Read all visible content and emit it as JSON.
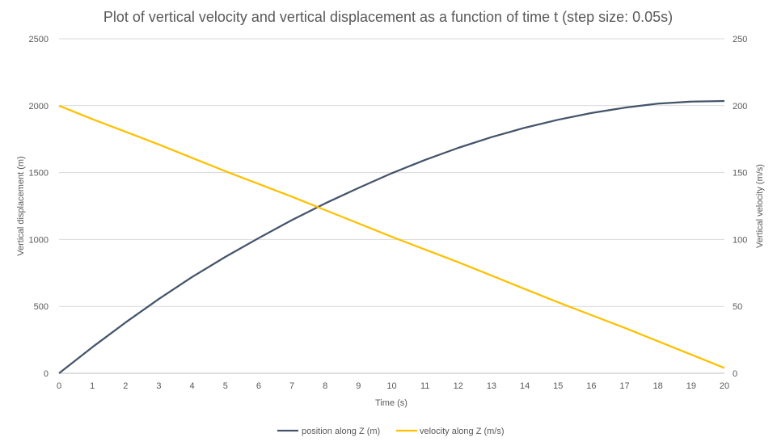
{
  "chart_data": {
    "type": "line",
    "title": "Plot of vertical velocity and vertical displacement as a function of time t (step size: 0.05s)",
    "xlabel": "Time (s)",
    "ylabel_left": "Vertical displacement (m)",
    "ylabel_right": "Vertical velocity (m/s)",
    "xlim": [
      0,
      20
    ],
    "ylim_left": [
      0,
      2500
    ],
    "ylim_right": [
      0,
      250
    ],
    "x_ticks": [
      "0",
      "1",
      "2",
      "3",
      "4",
      "5",
      "6",
      "7",
      "8",
      "9",
      "10",
      "11",
      "12",
      "13",
      "14",
      "15",
      "16",
      "17",
      "18",
      "19",
      "20"
    ],
    "y_left_ticks": [
      "0",
      "500",
      "1000",
      "1500",
      "2000",
      "2500"
    ],
    "y_right_ticks": [
      "0",
      "50",
      "100",
      "150",
      "200",
      "250"
    ],
    "grid": true,
    "legend_position": "bottom",
    "x": [
      0,
      1,
      2,
      3,
      4,
      5,
      6,
      7,
      8,
      9,
      10,
      11,
      12,
      13,
      14,
      15,
      16,
      17,
      18,
      19,
      20
    ],
    "series": [
      {
        "name": "position along Z (m)",
        "axis": "left",
        "color": "#44546A",
        "values": [
          0,
          195,
          380,
          555,
          720,
          870,
          1010,
          1145,
          1270,
          1385,
          1495,
          1595,
          1685,
          1765,
          1835,
          1895,
          1945,
          1985,
          2015,
          2030,
          2035
        ]
      },
      {
        "name": "velocity along Z (m/s)",
        "axis": "right",
        "color": "#FFC000",
        "values": [
          200,
          190,
          180.5,
          171,
          161,
          151,
          141.5,
          132,
          122,
          112,
          102,
          92.5,
          83,
          73,
          63,
          53,
          43.5,
          34,
          24,
          14,
          4
        ]
      }
    ]
  }
}
